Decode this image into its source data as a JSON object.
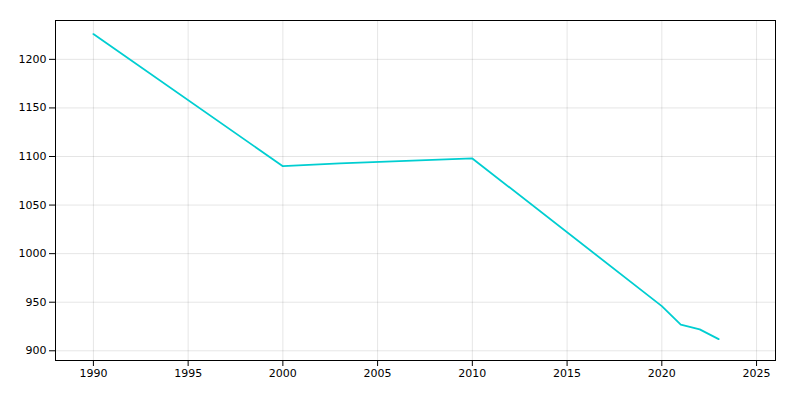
{
  "chart_data": {
    "type": "line",
    "x": [
      1990,
      2000,
      2003,
      2010,
      2020,
      2021,
      2022,
      2023
    ],
    "values": [
      1226,
      1090,
      1093,
      1098,
      946,
      927,
      922,
      912
    ],
    "color": "#00CED1",
    "xlim": [
      1988,
      2026
    ],
    "ylim": [
      890,
      1240
    ],
    "xticks": [
      1990,
      1995,
      2000,
      2005,
      2010,
      2015,
      2020,
      2025
    ],
    "yticks": [
      900,
      950,
      1000,
      1050,
      1100,
      1150,
      1200
    ],
    "grid": true
  }
}
